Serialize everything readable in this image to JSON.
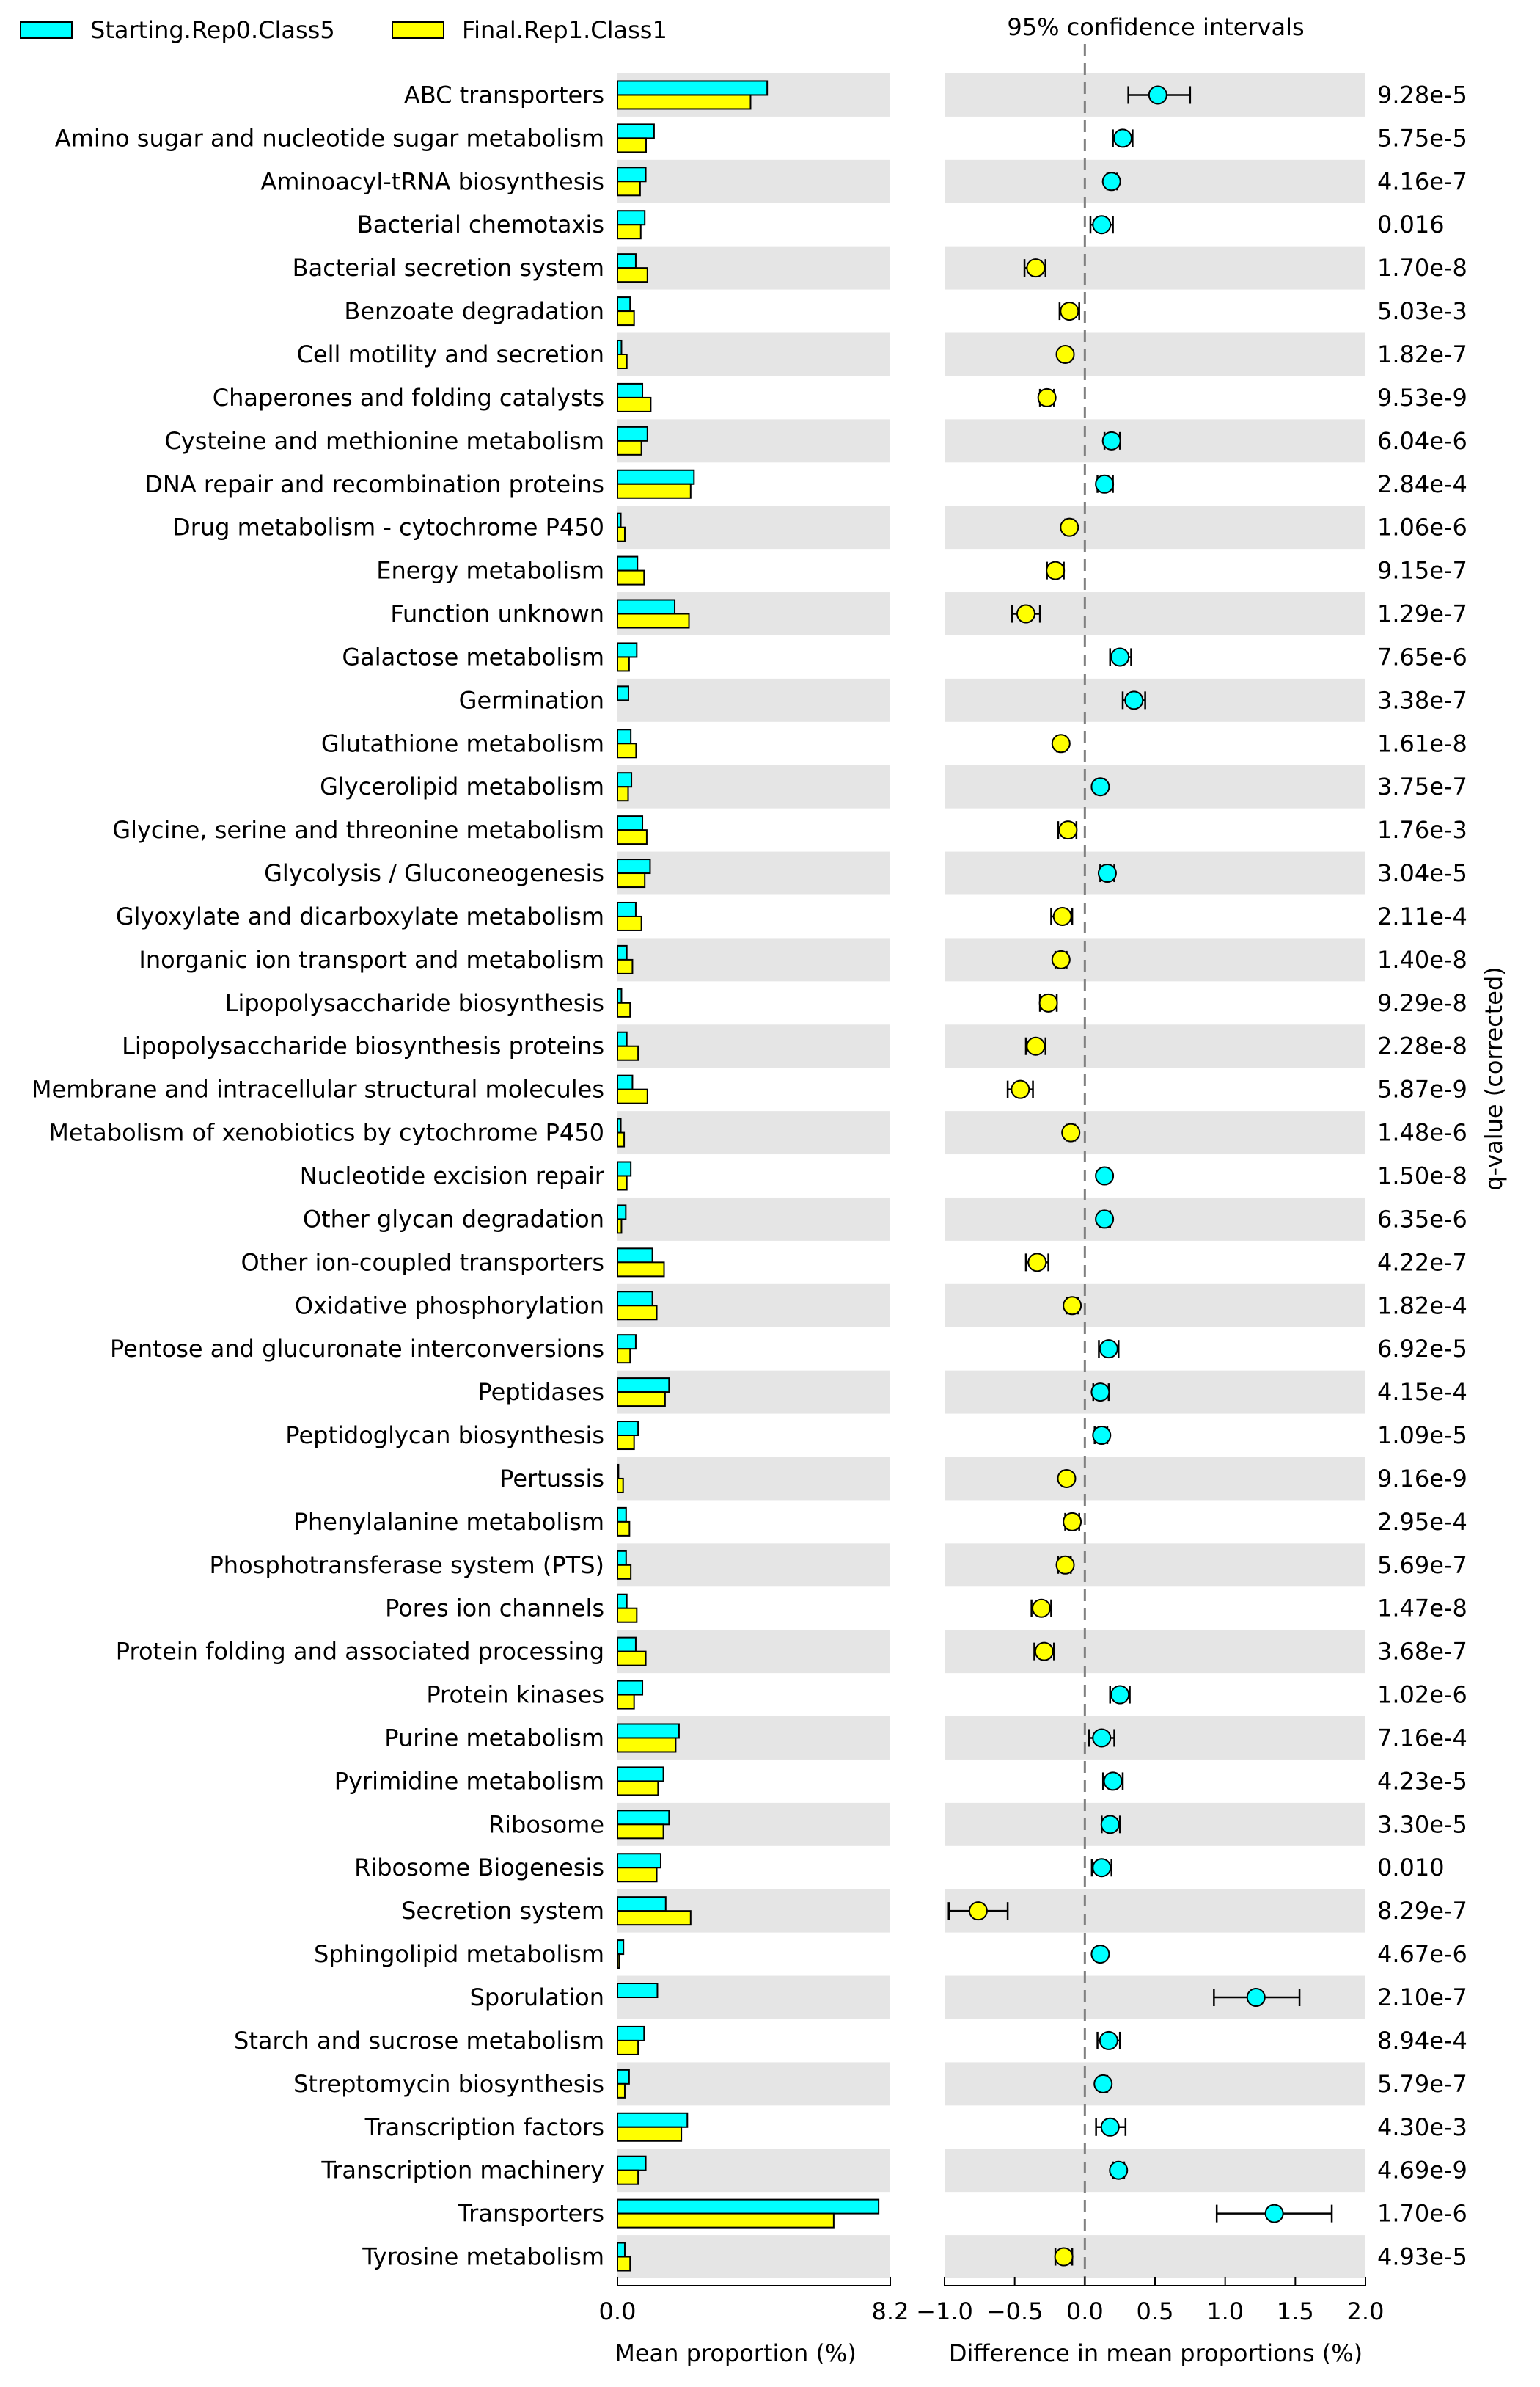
{
  "legend": [
    {
      "label": "Starting.Rep0.Class5",
      "color": "#00ffff"
    },
    {
      "label": "Final.Rep1.Class1",
      "color": "#ffff00"
    }
  ],
  "ci_title": "95% confidence intervals",
  "qvalue_axis_label": "q-value (corrected)",
  "chart_data": {
    "type": "extended_error_bar",
    "title": "95% confidence intervals",
    "left_panel": {
      "type": "bar",
      "xlabel": "Mean proportion (%)",
      "xlim": [
        0,
        8.2
      ],
      "ticks": [
        "0.0",
        "8.2"
      ]
    },
    "right_panel": {
      "type": "scatter_with_error_bars",
      "xlabel": "Difference in mean proportions (%)",
      "xlim": [
        -1.0,
        2.0
      ],
      "ticks": [
        "−1.0",
        "−0.5",
        "0.0",
        "0.5",
        "1.0",
        "1.5",
        "2.0"
      ]
    },
    "series": [
      {
        "name": "Starting.Rep0.Class5",
        "color": "#00ffff"
      },
      {
        "name": "Final.Rep1.Class1",
        "color": "#ffff00"
      }
    ],
    "rows": [
      {
        "label": "ABC transporters",
        "starting": 4.5,
        "final": 4.0,
        "diff": 0.52,
        "ci_low": 0.31,
        "ci_high": 0.75,
        "q": "9.28e-5"
      },
      {
        "label": "Amino sugar and nucleotide sugar metabolism",
        "starting": 1.1,
        "final": 0.86,
        "diff": 0.27,
        "ci_low": 0.2,
        "ci_high": 0.34,
        "q": "5.75e-5"
      },
      {
        "label": "Aminoacyl-tRNA biosynthesis",
        "starting": 0.85,
        "final": 0.68,
        "diff": 0.19,
        "ci_low": 0.16,
        "ci_high": 0.23,
        "q": "4.16e-7"
      },
      {
        "label": "Bacterial chemotaxis",
        "starting": 0.82,
        "final": 0.7,
        "diff": 0.12,
        "ci_low": 0.04,
        "ci_high": 0.2,
        "q": "0.016"
      },
      {
        "label": "Bacterial secretion system",
        "starting": 0.55,
        "final": 0.9,
        "diff": -0.35,
        "ci_low": -0.43,
        "ci_high": -0.28,
        "q": "1.70e-8"
      },
      {
        "label": "Benzoate degradation",
        "starting": 0.38,
        "final": 0.5,
        "diff": -0.11,
        "ci_low": -0.18,
        "ci_high": -0.04,
        "q": "5.03e-3"
      },
      {
        "label": "Cell motility and secretion",
        "starting": 0.12,
        "final": 0.28,
        "diff": -0.14,
        "ci_low": -0.17,
        "ci_high": -0.11,
        "q": "1.82e-7"
      },
      {
        "label": "Chaperones and folding catalysts",
        "starting": 0.75,
        "final": 1.0,
        "diff": -0.27,
        "ci_low": -0.32,
        "ci_high": -0.22,
        "q": "9.53e-9"
      },
      {
        "label": "Cysteine and methionine metabolism",
        "starting": 0.9,
        "final": 0.72,
        "diff": 0.19,
        "ci_low": 0.14,
        "ci_high": 0.25,
        "q": "6.04e-6"
      },
      {
        "label": "DNA repair and recombination proteins",
        "starting": 2.3,
        "final": 2.2,
        "diff": 0.14,
        "ci_low": 0.09,
        "ci_high": 0.2,
        "q": "2.84e-4"
      },
      {
        "label": "Drug metabolism - cytochrome P450",
        "starting": 0.1,
        "final": 0.22,
        "diff": -0.11,
        "ci_low": -0.14,
        "ci_high": -0.08,
        "q": "1.06e-6"
      },
      {
        "label": "Energy metabolism",
        "starting": 0.6,
        "final": 0.8,
        "diff": -0.21,
        "ci_low": -0.27,
        "ci_high": -0.15,
        "q": "9.15e-7"
      },
      {
        "label": "Function unknown",
        "starting": 1.72,
        "final": 2.15,
        "diff": -0.42,
        "ci_low": -0.52,
        "ci_high": -0.32,
        "q": "1.29e-7"
      },
      {
        "label": "Galactose metabolism",
        "starting": 0.58,
        "final": 0.35,
        "diff": 0.25,
        "ci_low": 0.18,
        "ci_high": 0.33,
        "q": "7.65e-6"
      },
      {
        "label": "Germination",
        "starting": 0.33,
        "final": 0.0,
        "diff": 0.35,
        "ci_low": 0.27,
        "ci_high": 0.43,
        "q": "3.38e-7"
      },
      {
        "label": "Glutathione metabolism",
        "starting": 0.4,
        "final": 0.56,
        "diff": -0.17,
        "ci_low": -0.2,
        "ci_high": -0.14,
        "q": "1.61e-8"
      },
      {
        "label": "Glycerolipid metabolism",
        "starting": 0.42,
        "final": 0.32,
        "diff": 0.11,
        "ci_low": 0.08,
        "ci_high": 0.14,
        "q": "3.75e-7"
      },
      {
        "label": "Glycine, serine and threonine metabolism",
        "starting": 0.75,
        "final": 0.88,
        "diff": -0.12,
        "ci_low": -0.19,
        "ci_high": -0.06,
        "q": "1.76e-3"
      },
      {
        "label": "Glycolysis / Gluconeogenesis",
        "starting": 0.98,
        "final": 0.82,
        "diff": 0.16,
        "ci_low": 0.11,
        "ci_high": 0.21,
        "q": "3.04e-5"
      },
      {
        "label": "Glyoxylate and dicarboxylate metabolism",
        "starting": 0.55,
        "final": 0.72,
        "diff": -0.16,
        "ci_low": -0.24,
        "ci_high": -0.09,
        "q": "2.11e-4"
      },
      {
        "label": "Inorganic ion transport and metabolism",
        "starting": 0.28,
        "final": 0.45,
        "diff": -0.17,
        "ci_low": -0.21,
        "ci_high": -0.13,
        "q": "1.40e-8"
      },
      {
        "label": "Lipopolysaccharide biosynthesis",
        "starting": 0.12,
        "final": 0.38,
        "diff": -0.26,
        "ci_low": -0.32,
        "ci_high": -0.2,
        "q": "9.29e-8"
      },
      {
        "label": "Lipopolysaccharide biosynthesis proteins",
        "starting": 0.28,
        "final": 0.62,
        "diff": -0.35,
        "ci_low": -0.42,
        "ci_high": -0.28,
        "q": "2.28e-8"
      },
      {
        "label": "Membrane and intracellular structural molecules",
        "starting": 0.45,
        "final": 0.9,
        "diff": -0.46,
        "ci_low": -0.55,
        "ci_high": -0.37,
        "q": "5.87e-9"
      },
      {
        "label": "Metabolism of xenobiotics by cytochrome P450",
        "starting": 0.1,
        "final": 0.2,
        "diff": -0.1,
        "ci_low": -0.13,
        "ci_high": -0.07,
        "q": "1.48e-6"
      },
      {
        "label": "Nucleotide excision repair",
        "starting": 0.4,
        "final": 0.28,
        "diff": 0.14,
        "ci_low": 0.12,
        "ci_high": 0.16,
        "q": "1.50e-8"
      },
      {
        "label": "Other glycan degradation",
        "starting": 0.25,
        "final": 0.12,
        "diff": 0.14,
        "ci_low": 0.11,
        "ci_high": 0.18,
        "q": "6.35e-6"
      },
      {
        "label": "Other ion-coupled transporters",
        "starting": 1.05,
        "final": 1.4,
        "diff": -0.34,
        "ci_low": -0.42,
        "ci_high": -0.26,
        "q": "4.22e-7"
      },
      {
        "label": "Oxidative phosphorylation",
        "starting": 1.05,
        "final": 1.18,
        "diff": -0.09,
        "ci_low": -0.13,
        "ci_high": -0.05,
        "q": "1.82e-4"
      },
      {
        "label": "Pentose and glucuronate interconversions",
        "starting": 0.55,
        "final": 0.38,
        "diff": 0.17,
        "ci_low": 0.1,
        "ci_high": 0.24,
        "q": "6.92e-5"
      },
      {
        "label": "Peptidases",
        "starting": 1.55,
        "final": 1.43,
        "diff": 0.11,
        "ci_low": 0.06,
        "ci_high": 0.17,
        "q": "4.15e-4"
      },
      {
        "label": "Peptidoglycan biosynthesis",
        "starting": 0.62,
        "final": 0.5,
        "diff": 0.12,
        "ci_low": 0.07,
        "ci_high": 0.16,
        "q": "1.09e-5"
      },
      {
        "label": "Pertussis",
        "starting": 0.03,
        "final": 0.17,
        "diff": -0.13,
        "ci_low": -0.16,
        "ci_high": -0.11,
        "q": "9.16e-9"
      },
      {
        "label": "Phenylalanine metabolism",
        "starting": 0.26,
        "final": 0.36,
        "diff": -0.09,
        "ci_low": -0.14,
        "ci_high": -0.04,
        "q": "2.95e-4"
      },
      {
        "label": "Phosphotransferase system (PTS)",
        "starting": 0.26,
        "final": 0.4,
        "diff": -0.14,
        "ci_low": -0.19,
        "ci_high": -0.1,
        "q": "5.69e-7"
      },
      {
        "label": "Pores ion channels",
        "starting": 0.28,
        "final": 0.58,
        "diff": -0.31,
        "ci_low": -0.38,
        "ci_high": -0.24,
        "q": "1.47e-8"
      },
      {
        "label": "Protein folding and associated processing",
        "starting": 0.55,
        "final": 0.85,
        "diff": -0.29,
        "ci_low": -0.36,
        "ci_high": -0.22,
        "q": "3.68e-7"
      },
      {
        "label": "Protein kinases",
        "starting": 0.75,
        "final": 0.5,
        "diff": 0.25,
        "ci_low": 0.18,
        "ci_high": 0.32,
        "q": "1.02e-6"
      },
      {
        "label": "Purine metabolism",
        "starting": 1.85,
        "final": 1.75,
        "diff": 0.12,
        "ci_low": 0.03,
        "ci_high": 0.21,
        "q": "7.16e-4"
      },
      {
        "label": "Pyrimidine metabolism",
        "starting": 1.38,
        "final": 1.22,
        "diff": 0.2,
        "ci_low": 0.13,
        "ci_high": 0.27,
        "q": "4.23e-5"
      },
      {
        "label": "Ribosome",
        "starting": 1.55,
        "final": 1.38,
        "diff": 0.18,
        "ci_low": 0.12,
        "ci_high": 0.25,
        "q": "3.30e-5"
      },
      {
        "label": "Ribosome Biogenesis",
        "starting": 1.3,
        "final": 1.18,
        "diff": 0.12,
        "ci_low": 0.05,
        "ci_high": 0.19,
        "q": "0.010"
      },
      {
        "label": "Secretion system",
        "starting": 1.45,
        "final": 2.2,
        "diff": -0.76,
        "ci_low": -0.97,
        "ci_high": -0.55,
        "q": "8.29e-7"
      },
      {
        "label": "Sphingolipid metabolism",
        "starting": 0.18,
        "final": 0.05,
        "diff": 0.11,
        "ci_low": 0.09,
        "ci_high": 0.13,
        "q": "4.67e-6"
      },
      {
        "label": "Sporulation",
        "starting": 1.2,
        "final": 0.0,
        "diff": 1.22,
        "ci_low": 0.92,
        "ci_high": 1.53,
        "q": "2.10e-7"
      },
      {
        "label": "Starch and sucrose metabolism",
        "starting": 0.8,
        "final": 0.62,
        "diff": 0.17,
        "ci_low": 0.09,
        "ci_high": 0.25,
        "q": "8.94e-4"
      },
      {
        "label": "Streptomycin biosynthesis",
        "starting": 0.35,
        "final": 0.22,
        "diff": 0.13,
        "ci_low": 0.11,
        "ci_high": 0.16,
        "q": "5.79e-7"
      },
      {
        "label": "Transcription factors",
        "starting": 2.1,
        "final": 1.92,
        "diff": 0.18,
        "ci_low": 0.08,
        "ci_high": 0.29,
        "q": "4.30e-3"
      },
      {
        "label": "Transcription machinery",
        "starting": 0.85,
        "final": 0.62,
        "diff": 0.24,
        "ci_low": 0.2,
        "ci_high": 0.28,
        "q": "4.69e-9"
      },
      {
        "label": "Transporters",
        "starting": 7.85,
        "final": 6.5,
        "diff": 1.35,
        "ci_low": 0.94,
        "ci_high": 1.76,
        "q": "1.70e-6"
      },
      {
        "label": "Tyrosine metabolism",
        "starting": 0.22,
        "final": 0.38,
        "diff": -0.15,
        "ci_low": -0.21,
        "ci_high": -0.09,
        "q": "4.93e-5"
      }
    ]
  }
}
